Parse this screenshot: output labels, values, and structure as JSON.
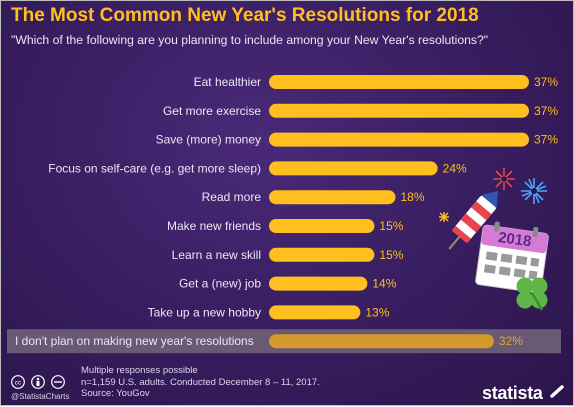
{
  "title": "The Most Common New Year's Resolutions for 2018",
  "subtitle": "\"Which of the following are you planning to include among your New Year's resolutions?\"",
  "colors": {
    "background": "#3a1f63",
    "bar": "#ffbf1f",
    "highlight_band": "#695a74",
    "last_bar": "#d49a2c"
  },
  "chart_data": {
    "type": "bar",
    "orientation": "horizontal",
    "categories": [
      "Eat healthier",
      "Get more exercise",
      "Save (more) money",
      "Focus on self-care (e.g. get more sleep)",
      "Read more",
      "Make new friends",
      "Learn a new skill",
      "Get a (new) job",
      "Take up a new hobby",
      "I don't plan on making new year's resolutions"
    ],
    "values": [
      37,
      37,
      37,
      24,
      18,
      15,
      15,
      14,
      13,
      32
    ],
    "value_labels": [
      "37%",
      "37%",
      "37%",
      "24%",
      "18%",
      "15%",
      "15%",
      "14%",
      "13%",
      "32%"
    ],
    "unit": "%",
    "xlim": [
      0,
      37
    ],
    "grid": false,
    "legend": "none"
  },
  "illustration": {
    "calendar_year": "2018",
    "icons": [
      "firework-burst-icon",
      "firework-rocket-icon",
      "calendar-icon",
      "four-leaf-clover-icon"
    ]
  },
  "footer": {
    "note_line1": "Multiple responses possible",
    "note_line2": "n=1,159 U.S. adults. Conducted December 8 – 11, 2017.",
    "source": "Source: YouGov",
    "handle": "@StatistaCharts",
    "brand": "statista"
  }
}
